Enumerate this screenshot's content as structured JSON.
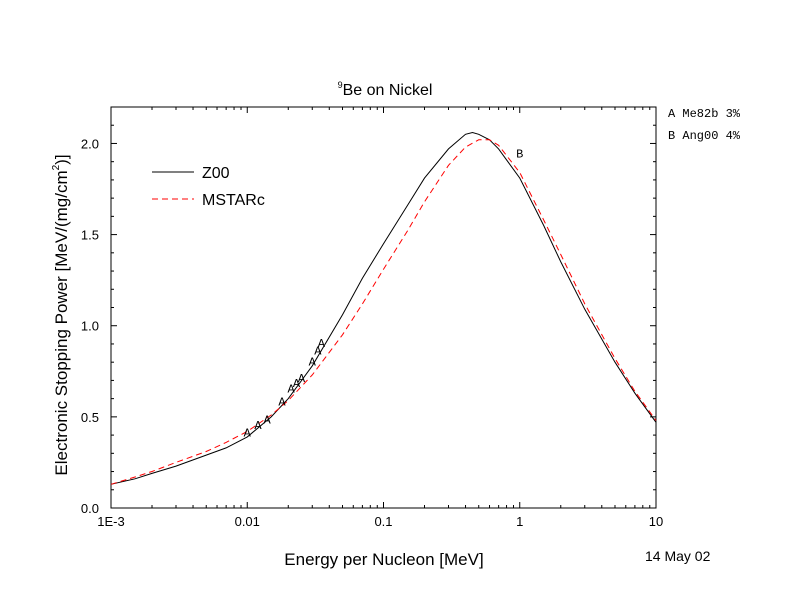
{
  "chart_data": {
    "type": "line",
    "title": {
      "sup": "9",
      "text": "Be on Nickel"
    },
    "xlabel": "Energy per Nucleon [MeV]",
    "ylabel": {
      "pre": "Electronic Stopping Power [MeV/(mg/cm",
      "sup": "2",
      "post": ")]"
    },
    "xscale": "log",
    "xlim": [
      0.001,
      10
    ],
    "ylim": [
      0.0,
      2.2
    ],
    "x_ticks": [
      0.001,
      0.01,
      0.1,
      1,
      10
    ],
    "x_tick_labels": [
      "1E-3",
      "0.01",
      "0.1",
      "1",
      "10"
    ],
    "y_ticks": [
      0.0,
      0.5,
      1.0,
      1.5,
      2.0
    ],
    "y_tick_labels": [
      "0.0",
      "0.5",
      "1.0",
      "1.5",
      "2.0"
    ],
    "legend_position": "top-left",
    "series": [
      {
        "name": "Z00",
        "style": "solid",
        "color": "#000000",
        "x": [
          0.001,
          0.0015,
          0.002,
          0.003,
          0.005,
          0.007,
          0.01,
          0.015,
          0.02,
          0.03,
          0.05,
          0.07,
          0.1,
          0.15,
          0.2,
          0.3,
          0.4,
          0.45,
          0.5,
          0.6,
          0.7,
          1.0,
          1.5,
          2.0,
          3.0,
          5.0,
          7.0,
          10.0
        ],
        "y": [
          0.13,
          0.16,
          0.19,
          0.23,
          0.29,
          0.33,
          0.39,
          0.5,
          0.6,
          0.78,
          1.06,
          1.26,
          1.45,
          1.66,
          1.81,
          1.97,
          2.05,
          2.06,
          2.05,
          2.02,
          1.97,
          1.81,
          1.55,
          1.35,
          1.09,
          0.8,
          0.63,
          0.47
        ]
      },
      {
        "name": "MSTARc",
        "style": "dashed",
        "color": "#ff0000",
        "x": [
          0.001,
          0.0015,
          0.002,
          0.003,
          0.005,
          0.007,
          0.01,
          0.015,
          0.02,
          0.03,
          0.05,
          0.07,
          0.1,
          0.15,
          0.2,
          0.3,
          0.4,
          0.5,
          0.6,
          0.7,
          1.0,
          1.5,
          2.0,
          3.0,
          5.0,
          7.0,
          10.0
        ],
        "y": [
          0.13,
          0.17,
          0.2,
          0.25,
          0.31,
          0.36,
          0.42,
          0.51,
          0.59,
          0.73,
          0.95,
          1.12,
          1.31,
          1.52,
          1.68,
          1.88,
          1.98,
          2.02,
          2.02,
          1.99,
          1.84,
          1.58,
          1.39,
          1.12,
          0.82,
          0.64,
          0.48
        ]
      }
    ],
    "data_markers": [
      {
        "label": "A",
        "x": 0.01,
        "y": 0.42
      },
      {
        "label": "A",
        "x": 0.012,
        "y": 0.46
      },
      {
        "label": "A",
        "x": 0.014,
        "y": 0.49
      },
      {
        "label": "A",
        "x": 0.018,
        "y": 0.59
      },
      {
        "label": "A",
        "x": 0.021,
        "y": 0.66
      },
      {
        "label": "A",
        "x": 0.023,
        "y": 0.69
      },
      {
        "label": "A",
        "x": 0.025,
        "y": 0.72
      },
      {
        "label": "A",
        "x": 0.03,
        "y": 0.81
      },
      {
        "label": "A",
        "x": 0.033,
        "y": 0.87
      },
      {
        "label": "A",
        "x": 0.035,
        "y": 0.91
      },
      {
        "label": "B",
        "x": 1.0,
        "y": 1.95
      }
    ],
    "reference_key": [
      {
        "label": "A Me82b 3%"
      },
      {
        "label": "B Ang00 4%"
      }
    ],
    "date_stamp": "14 May 02"
  }
}
